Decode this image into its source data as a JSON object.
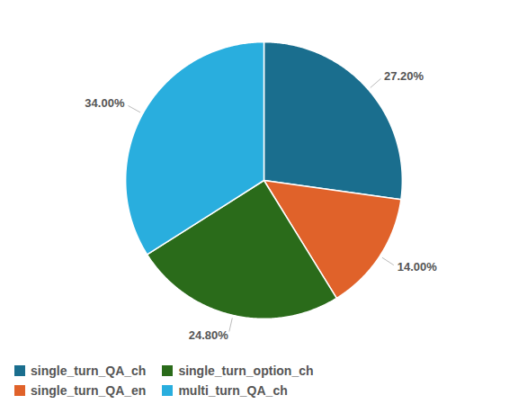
{
  "chart_data": {
    "type": "pie",
    "categories": [
      "single_turn_QA_ch",
      "single_turn_QA_en",
      "single_turn_option_ch",
      "multi_turn_QA_ch"
    ],
    "values": [
      27.2,
      14,
      24.8,
      34
    ],
    "value_labels": [
      "27.20%",
      "14.00%",
      "24.80%",
      "34.00%"
    ],
    "colors": [
      "#1a6e8e",
      "#e0622a",
      "#2a6b1a",
      "#29aede"
    ],
    "data_labels": true,
    "legend": "bottom",
    "tick_labels": false
  }
}
